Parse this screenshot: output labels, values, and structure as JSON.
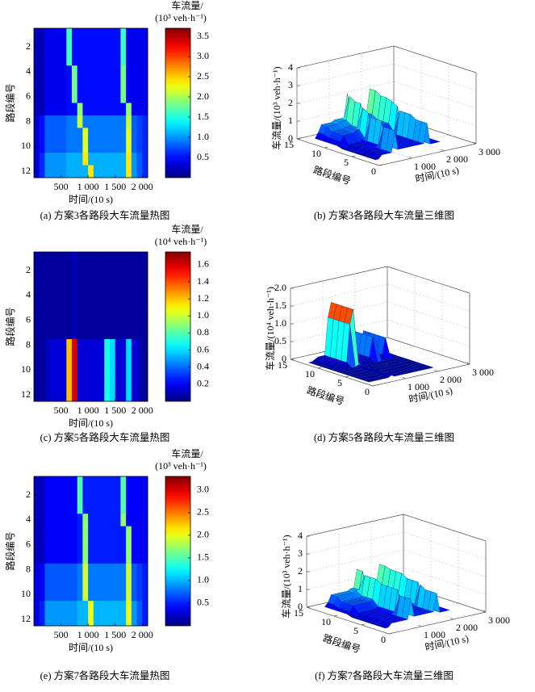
{
  "chart_data": [
    {
      "type": "heatmap",
      "caption": "(a) 方案3各路段大车流量热图",
      "xlabel": "时间/(10 s)",
      "ylabel": "路段编号",
      "colorbar_title": [
        "车流量/",
        "(10³ veh·h⁻¹)"
      ],
      "x": [
        50,
        150,
        250,
        350,
        450,
        550,
        650,
        750,
        850,
        950,
        1050,
        1150,
        1250,
        1350,
        1450,
        1550,
        1650,
        1750,
        1850,
        1950,
        2050
      ],
      "y": [
        1,
        2,
        3,
        4,
        5,
        6,
        7,
        8,
        9,
        10,
        11,
        12
      ],
      "z": [
        [
          0.2,
          0.2,
          0.4,
          0.4,
          0.4,
          0.4,
          1.6,
          0.5,
          0.5,
          0.5,
          0.5,
          0.5,
          0.5,
          0.5,
          0.5,
          0.5,
          1.6,
          0.4,
          0.4,
          0.4,
          0.4
        ],
        [
          0.2,
          0.2,
          0.4,
          0.4,
          0.4,
          0.4,
          1.6,
          0.5,
          0.5,
          0.5,
          0.5,
          0.5,
          0.5,
          0.5,
          0.5,
          0.5,
          1.6,
          0.4,
          0.4,
          0.4,
          0.4
        ],
        [
          0.2,
          0.2,
          0.4,
          0.4,
          0.4,
          0.4,
          1.6,
          0.5,
          0.5,
          0.5,
          0.5,
          0.5,
          0.5,
          0.5,
          0.5,
          0.5,
          1.6,
          0.4,
          0.4,
          0.4,
          0.4
        ],
        [
          0.2,
          0.2,
          0.4,
          0.4,
          0.4,
          0.4,
          0.5,
          1.8,
          0.5,
          0.5,
          0.5,
          0.5,
          0.5,
          0.5,
          0.5,
          0.5,
          1.8,
          0.4,
          0.4,
          0.4,
          0.4
        ],
        [
          0.2,
          0.2,
          0.4,
          0.4,
          0.4,
          0.4,
          0.5,
          1.8,
          0.5,
          0.5,
          0.5,
          0.5,
          0.5,
          0.5,
          0.5,
          0.5,
          1.8,
          0.4,
          0.4,
          0.4,
          0.4
        ],
        [
          0.2,
          0.2,
          0.4,
          0.4,
          0.4,
          0.4,
          0.5,
          1.8,
          0.5,
          0.5,
          0.5,
          0.5,
          0.5,
          0.5,
          0.5,
          0.5,
          1.8,
          0.4,
          0.4,
          0.4,
          0.4
        ],
        [
          0.2,
          0.2,
          0.4,
          0.4,
          0.4,
          0.4,
          0.5,
          0.5,
          1.9,
          0.5,
          0.5,
          0.5,
          0.5,
          0.5,
          0.5,
          0.5,
          0.5,
          1.9,
          0.4,
          0.4,
          0.4
        ],
        [
          0.3,
          0.5,
          0.8,
          0.8,
          0.8,
          0.8,
          0.9,
          0.9,
          2.1,
          0.9,
          0.9,
          0.9,
          0.9,
          0.9,
          0.9,
          0.9,
          0.9,
          2.1,
          0.8,
          0.7,
          0.6
        ],
        [
          0.3,
          0.5,
          0.8,
          0.8,
          0.8,
          0.8,
          0.9,
          0.9,
          0.9,
          2.2,
          0.9,
          0.9,
          0.9,
          0.9,
          0.9,
          0.9,
          0.9,
          2.2,
          0.8,
          0.7,
          0.6
        ],
        [
          0.3,
          0.5,
          0.8,
          0.8,
          0.8,
          0.8,
          0.9,
          0.9,
          0.9,
          2.2,
          0.9,
          0.9,
          0.9,
          0.9,
          0.9,
          0.9,
          0.9,
          2.2,
          0.8,
          0.7,
          0.6
        ],
        [
          0.3,
          0.6,
          1.0,
          1.0,
          1.0,
          1.0,
          1.1,
          1.1,
          1.1,
          2.4,
          1.1,
          1.1,
          1.1,
          1.1,
          1.1,
          1.1,
          1.1,
          2.4,
          1.0,
          0.8,
          0.6
        ],
        [
          0.3,
          0.6,
          1.0,
          1.0,
          1.0,
          1.0,
          1.1,
          1.1,
          1.1,
          1.1,
          2.4,
          1.1,
          1.1,
          1.1,
          1.1,
          1.1,
          1.1,
          2.4,
          1.0,
          0.8,
          0.6
        ]
      ],
      "xlim": [
        0,
        2100
      ],
      "xticks": [
        500,
        {
          "value": 1000,
          "label": "1 000"
        },
        {
          "value": 1500,
          "label": "1 500"
        },
        {
          "value": 2000,
          "label": "2 000"
        }
      ],
      "ylim": [
        12.5,
        0.5
      ],
      "yticks": [
        2,
        4,
        6,
        8,
        10,
        12
      ],
      "clim": [
        0,
        3.7
      ],
      "cticks": [
        0.5,
        {
          "value": 1,
          "label": "1.0"
        },
        1.5,
        {
          "value": 2,
          "label": "2.0"
        },
        2.5,
        {
          "value": 3,
          "label": "3.0"
        },
        3.5
      ]
    },
    {
      "type": "surface3d",
      "caption": "(b) 方案3各路段大车流量三维图",
      "xlabel": "时间/(10 s)",
      "ylabel": "路段编号",
      "zlabel": "车流量/(10³ veh·h⁻¹)",
      "xlim": [
        0,
        3000
      ],
      "xticks": [
        {
          "value": 1000,
          "label": "1 000"
        },
        {
          "value": 2000,
          "label": "2 000"
        },
        {
          "value": 3000,
          "label": "3 000"
        }
      ],
      "ylim": [
        0,
        15
      ],
      "yticks": [
        0,
        5,
        10,
        15
      ],
      "zlim": [
        0,
        4
      ],
      "zticks": [
        0,
        1,
        2,
        3,
        4
      ],
      "grid": true
    },
    {
      "type": "heatmap",
      "caption": "(c) 方案5各路段大车流量热图",
      "xlabel": "时间/(10 s)",
      "ylabel": "路段编号",
      "colorbar_title": [
        "车流量/",
        "(10⁴ veh·h⁻¹)"
      ],
      "x": [
        50,
        150,
        250,
        350,
        450,
        550,
        650,
        750,
        850,
        950,
        1050,
        1150,
        1250,
        1350,
        1450,
        1550,
        1650,
        1750,
        1850,
        1950,
        2050
      ],
      "y": [
        1,
        2,
        3,
        4,
        5,
        6,
        7,
        8,
        9,
        10,
        11,
        12
      ],
      "z": [
        [
          0.05,
          0.05,
          0.05,
          0.05,
          0.05,
          0.05,
          0.05,
          0.1,
          0.05,
          0.05,
          0.05,
          0.05,
          0.05,
          0.05,
          0.05,
          0.05,
          0.05,
          0.05,
          0.05,
          0.05,
          0.05
        ],
        [
          0.05,
          0.05,
          0.05,
          0.05,
          0.05,
          0.05,
          0.05,
          0.1,
          0.05,
          0.05,
          0.05,
          0.05,
          0.05,
          0.05,
          0.05,
          0.05,
          0.05,
          0.05,
          0.05,
          0.05,
          0.05
        ],
        [
          0.05,
          0.05,
          0.05,
          0.05,
          0.05,
          0.05,
          0.05,
          0.1,
          0.05,
          0.05,
          0.05,
          0.05,
          0.05,
          0.05,
          0.05,
          0.05,
          0.05,
          0.05,
          0.05,
          0.05,
          0.05
        ],
        [
          0.05,
          0.05,
          0.05,
          0.05,
          0.05,
          0.05,
          0.05,
          0.1,
          0.05,
          0.05,
          0.05,
          0.05,
          0.05,
          0.05,
          0.05,
          0.05,
          0.05,
          0.05,
          0.05,
          0.05,
          0.05
        ],
        [
          0.05,
          0.05,
          0.05,
          0.05,
          0.05,
          0.05,
          0.05,
          0.1,
          0.05,
          0.05,
          0.05,
          0.05,
          0.05,
          0.05,
          0.05,
          0.05,
          0.05,
          0.05,
          0.05,
          0.05,
          0.05
        ],
        [
          0.05,
          0.05,
          0.05,
          0.05,
          0.05,
          0.05,
          0.05,
          0.1,
          0.05,
          0.05,
          0.05,
          0.05,
          0.05,
          0.05,
          0.05,
          0.05,
          0.05,
          0.05,
          0.05,
          0.05,
          0.05
        ],
        [
          0.05,
          0.05,
          0.05,
          0.05,
          0.05,
          0.05,
          0.05,
          0.1,
          0.05,
          0.05,
          0.05,
          0.05,
          0.05,
          0.05,
          0.05,
          0.05,
          0.05,
          0.05,
          0.05,
          0.05,
          0.05
        ],
        [
          0.05,
          0.05,
          0.1,
          0.15,
          0.15,
          0.15,
          1.2,
          1.6,
          0.15,
          0.15,
          0.15,
          0.15,
          0.15,
          0.7,
          0.6,
          0.15,
          0.15,
          0.6,
          0.15,
          0.1,
          0.05
        ],
        [
          0.05,
          0.05,
          0.1,
          0.15,
          0.15,
          0.15,
          1.2,
          1.6,
          0.15,
          0.15,
          0.15,
          0.15,
          0.15,
          0.7,
          0.6,
          0.15,
          0.15,
          0.6,
          0.15,
          0.1,
          0.05
        ],
        [
          0.05,
          0.05,
          0.1,
          0.15,
          0.15,
          0.15,
          1.2,
          1.6,
          0.15,
          0.15,
          0.15,
          0.15,
          0.15,
          0.7,
          0.6,
          0.15,
          0.15,
          0.6,
          0.15,
          0.1,
          0.05
        ],
        [
          0.05,
          0.05,
          0.1,
          0.15,
          0.15,
          0.15,
          1.2,
          1.6,
          0.15,
          0.15,
          0.15,
          0.15,
          0.15,
          0.7,
          0.6,
          0.15,
          0.15,
          0.6,
          0.15,
          0.1,
          0.05
        ],
        [
          0.05,
          0.05,
          0.1,
          0.15,
          0.15,
          0.15,
          1.2,
          1.6,
          0.15,
          0.15,
          0.15,
          0.15,
          0.15,
          0.7,
          0.6,
          0.15,
          0.15,
          0.6,
          0.15,
          0.1,
          0.05
        ]
      ],
      "xlim": [
        0,
        2100
      ],
      "xticks": [
        500,
        {
          "value": 1000,
          "label": "1 000"
        },
        {
          "value": 1500,
          "label": "1 500"
        },
        {
          "value": 2000,
          "label": "2 000"
        }
      ],
      "ylim": [
        12.5,
        0.5
      ],
      "yticks": [
        2,
        4,
        6,
        8,
        10,
        12
      ],
      "clim": [
        0,
        1.75
      ],
      "cticks": [
        0.2,
        0.4,
        0.6,
        0.8,
        {
          "value": 1,
          "label": "1.0"
        },
        1.2,
        1.4,
        1.6
      ]
    },
    {
      "type": "surface3d",
      "caption": "(d) 方案5各路段大车流量三维图",
      "xlabel": "时间/(10 s)",
      "ylabel": "路段编号",
      "zlabel": "车流量/(10⁴ veh·h⁻¹)",
      "xlim": [
        0,
        3000
      ],
      "xticks": [
        {
          "value": 1000,
          "label": "1 000"
        },
        {
          "value": 2000,
          "label": "2 000"
        },
        {
          "value": 3000,
          "label": "3 000"
        }
      ],
      "ylim": [
        0,
        15
      ],
      "yticks": [
        0,
        5,
        10,
        15
      ],
      "zlim": [
        0,
        2
      ],
      "zticks": [
        0,
        0.5,
        {
          "value": 1,
          "label": "1.0"
        },
        1.5,
        {
          "value": 2,
          "label": "2.0"
        }
      ],
      "grid": true
    },
    {
      "type": "heatmap",
      "caption": "(e) 方案7各路段大车流量热图",
      "xlabel": "时间/(10 s)",
      "ylabel": "路段编号",
      "colorbar_title": [
        "车流量/",
        "(10³ veh·h⁻¹)"
      ],
      "x": [
        50,
        150,
        250,
        350,
        450,
        550,
        650,
        750,
        850,
        950,
        1050,
        1150,
        1250,
        1350,
        1450,
        1550,
        1650,
        1750,
        1850,
        1950,
        2050
      ],
      "y": [
        1,
        2,
        3,
        4,
        5,
        6,
        7,
        8,
        9,
        10,
        11,
        12
      ],
      "z": [
        [
          0.2,
          0.2,
          0.4,
          0.4,
          0.4,
          0.4,
          0.4,
          0.4,
          1.5,
          0.5,
          0.5,
          0.5,
          0.5,
          0.5,
          0.5,
          0.5,
          1.5,
          0.4,
          0.4,
          0.4,
          0.4
        ],
        [
          0.2,
          0.2,
          0.4,
          0.4,
          0.4,
          0.4,
          0.4,
          0.4,
          1.5,
          0.5,
          0.5,
          0.5,
          0.5,
          0.5,
          0.5,
          0.5,
          1.5,
          0.4,
          0.4,
          0.4,
          0.4
        ],
        [
          0.2,
          0.2,
          0.4,
          0.4,
          0.4,
          0.4,
          0.4,
          0.4,
          1.5,
          0.5,
          0.5,
          0.5,
          0.5,
          0.5,
          0.5,
          0.5,
          1.5,
          0.4,
          0.4,
          0.4,
          0.4
        ],
        [
          0.2,
          0.2,
          0.4,
          0.4,
          0.4,
          0.4,
          0.4,
          0.4,
          0.5,
          1.7,
          0.5,
          0.5,
          0.5,
          0.5,
          0.5,
          0.5,
          1.7,
          0.4,
          0.4,
          0.4,
          0.4
        ],
        [
          0.2,
          0.2,
          0.4,
          0.4,
          0.4,
          0.4,
          0.4,
          0.4,
          0.5,
          1.7,
          0.5,
          0.5,
          0.5,
          0.5,
          0.5,
          0.5,
          0.5,
          1.7,
          0.4,
          0.4,
          0.4
        ],
        [
          0.2,
          0.2,
          0.4,
          0.4,
          0.4,
          0.4,
          0.4,
          0.4,
          0.5,
          1.7,
          0.5,
          0.5,
          0.5,
          0.5,
          0.5,
          0.5,
          0.5,
          1.7,
          0.4,
          0.4,
          0.4
        ],
        [
          0.2,
          0.2,
          0.4,
          0.4,
          0.4,
          0.4,
          0.4,
          0.4,
          0.5,
          1.7,
          0.5,
          0.5,
          0.5,
          0.5,
          0.5,
          0.5,
          0.5,
          1.7,
          0.4,
          0.4,
          0.4
        ],
        [
          0.3,
          0.4,
          0.7,
          0.7,
          0.7,
          0.7,
          0.7,
          0.7,
          0.8,
          1.9,
          0.8,
          0.8,
          0.8,
          0.8,
          0.8,
          0.8,
          0.8,
          1.9,
          0.7,
          0.6,
          0.5
        ],
        [
          0.3,
          0.4,
          0.7,
          0.7,
          0.7,
          0.7,
          0.7,
          0.7,
          0.8,
          1.9,
          0.8,
          0.8,
          0.8,
          0.8,
          0.8,
          0.8,
          0.8,
          1.9,
          0.7,
          0.6,
          0.5
        ],
        [
          0.3,
          0.4,
          0.7,
          0.7,
          0.7,
          0.7,
          0.7,
          0.7,
          0.8,
          1.9,
          0.8,
          0.8,
          0.8,
          0.8,
          0.8,
          0.8,
          0.8,
          1.9,
          0.7,
          0.6,
          0.5
        ],
        [
          0.3,
          0.5,
          0.9,
          0.9,
          0.9,
          0.9,
          0.9,
          0.9,
          1.0,
          1.0,
          2.0,
          1.0,
          1.0,
          1.0,
          1.0,
          1.0,
          1.0,
          2.0,
          0.9,
          0.7,
          0.5
        ],
        [
          0.3,
          0.5,
          0.9,
          0.9,
          0.9,
          0.9,
          0.9,
          0.9,
          1.0,
          1.0,
          2.0,
          1.0,
          1.0,
          1.0,
          1.0,
          1.0,
          1.0,
          2.0,
          0.9,
          0.7,
          0.5
        ]
      ],
      "xlim": [
        0,
        2100
      ],
      "xticks": [
        500,
        {
          "value": 1000,
          "label": "1 000"
        },
        {
          "value": 1500,
          "label": "1 500"
        },
        {
          "value": 2000,
          "label": "2 000"
        }
      ],
      "ylim": [
        12.5,
        0.5
      ],
      "yticks": [
        2,
        4,
        6,
        8,
        10,
        12
      ],
      "clim": [
        0,
        3.3
      ],
      "cticks": [
        0.5,
        {
          "value": 1,
          "label": "1.0"
        },
        1.5,
        {
          "value": 2,
          "label": "2.0"
        },
        2.5,
        {
          "value": 3,
          "label": "3.0"
        }
      ]
    },
    {
      "type": "surface3d",
      "caption": "(f) 方案7各路段大车流量三维图",
      "xlabel": "时间/(10 s)",
      "ylabel": "路段编号",
      "zlabel": "车流量/(10³ veh·h⁻¹)",
      "xlim": [
        0,
        3000
      ],
      "xticks": [
        {
          "value": 1000,
          "label": "1 000"
        },
        {
          "value": 2000,
          "label": "2 000"
        },
        {
          "value": 3000,
          "label": "3 000"
        }
      ],
      "ylim": [
        0,
        15
      ],
      "yticks": [
        0,
        5,
        10,
        15
      ],
      "zlim": [
        0,
        4
      ],
      "zticks": [
        0,
        1,
        2,
        3,
        4
      ],
      "grid": true
    }
  ]
}
